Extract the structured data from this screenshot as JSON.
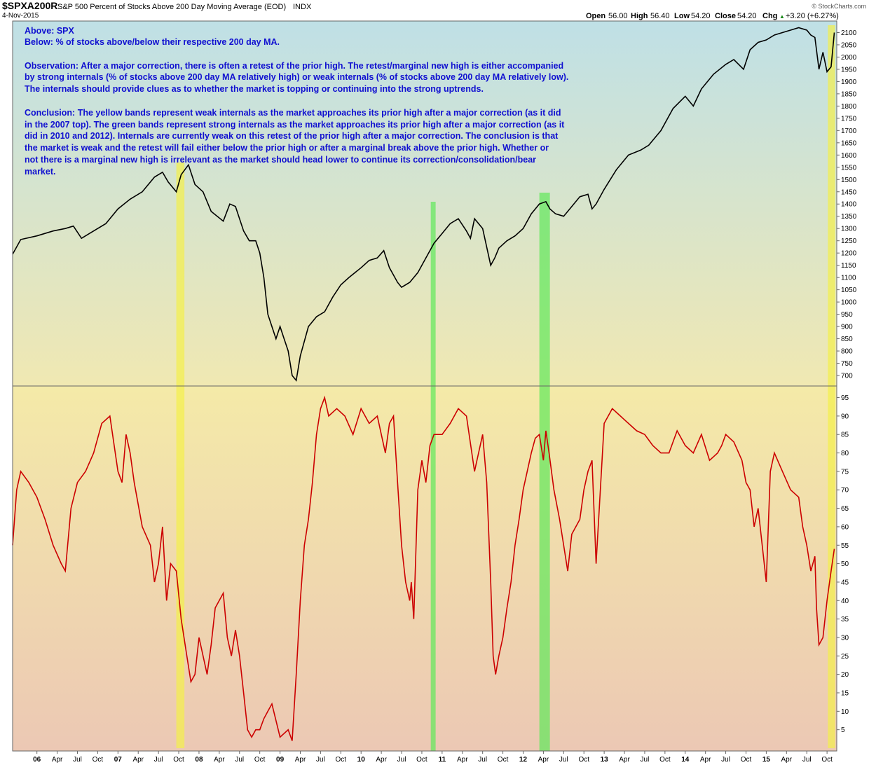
{
  "header": {
    "symbol": "$SPXA200R",
    "description": "S&P 500 Percent of Stocks Above 200 Day Moving Average (EOD)",
    "exchange": "INDX",
    "date": "4-Nov-2015",
    "watermark": "© StockCharts.com",
    "open_label": "Open",
    "open": "56.00",
    "high_label": "High",
    "high": "56.40",
    "low_label": "Low",
    "low": "54.20",
    "close_label": "Close",
    "close": "54.20",
    "chg_label": "Chg",
    "chg": "+3.20 (+6.27%)",
    "chg_arrow": "▲"
  },
  "annotation": {
    "l1": "Above: SPX",
    "l2": "Below: % of stocks above/below their respective 200 day MA.",
    "l3": "Observation: After a major correction, there is often a retest of the prior high. The retest/marginal new high is either accompanied",
    "l4": "by strong internals (% of stocks above 200 day MA relatively high) or weak internals (% of stocks above 200 day MA relatively low).",
    "l5": "The internals should provide clues as to whether the market is topping or continuing into the strong uptrends.",
    "l6": "Conclusion: The yellow bands represent weak internals as the market approaches its prior high after a major correction (as it did",
    "l7": "in the 2007 top). The green bands represent strong internals as the market approaches its prior high after a major correction (as it",
    "l8": "did in 2010 and 2012). Internals are currently weak on this retest of the prior high after a major correction. The conclusion is that",
    "l9": "the market is weak and the retest will fail either below the prior high or after a marginal break above the prior high. Whether or",
    "l10": "not there is a marginal new high is irrelevant as the market should head lower to continue its correction/consolidation/bear",
    "l11": "market."
  },
  "colors": {
    "spx_line": "#000000",
    "pct_line": "#cc0000",
    "yellow_band": "#f4f04a",
    "green_band": "#5fe85a",
    "annotation_text": "#1010d0",
    "top_bg_top": "#bfe0e6",
    "top_bg_bottom": "#f0e8b2",
    "bottom_bg_top": "#f4eaa8",
    "bottom_bg_bottom": "#ecc8b4"
  },
  "chart_data": [
    {
      "type": "line",
      "series": [
        {
          "x": [
            2005.7,
            2005.8,
            2006.0,
            2006.2,
            2006.35,
            2006.45,
            2006.55,
            2006.7,
            2006.85,
            2007.0,
            2007.15,
            2007.3,
            2007.45,
            2007.55,
            2007.62,
            2007.72,
            2007.78,
            2007.87,
            2007.95,
            2008.05,
            2008.15,
            2008.3,
            2008.38,
            2008.45,
            2008.55,
            2008.62,
            2008.7,
            2008.75,
            2008.8,
            2008.85,
            2008.9,
            2008.95,
            2009.0,
            2009.05,
            2009.1,
            2009.15,
            2009.2,
            2009.25,
            2009.35,
            2009.45,
            2009.55,
            2009.65,
            2009.75,
            2009.85,
            2010.0,
            2010.1,
            2010.2,
            2010.28,
            2010.35,
            2010.45,
            2010.5,
            2010.6,
            2010.7,
            2010.8,
            2010.9,
            2011.0,
            2011.1,
            2011.2,
            2011.3,
            2011.35,
            2011.4,
            2011.5,
            2011.6,
            2011.65,
            2011.7,
            2011.8,
            2011.9,
            2012.0,
            2012.1,
            2012.2,
            2012.28,
            2012.33,
            2012.4,
            2012.5,
            2012.6,
            2012.7,
            2012.8,
            2012.85,
            2012.9,
            2013.0,
            2013.15,
            2013.3,
            2013.45,
            2013.55,
            2013.7,
            2013.85,
            2014.0,
            2014.1,
            2014.2,
            2014.35,
            2014.5,
            2014.6,
            2014.72,
            2014.8,
            2014.9,
            2015.0,
            2015.1,
            2015.2,
            2015.3,
            2015.4,
            2015.5,
            2015.55,
            2015.6,
            2015.65,
            2015.7,
            2015.75,
            2015.8,
            2015.84
          ],
          "y": [
            1195,
            1255,
            1270,
            1290,
            1300,
            1310,
            1260,
            1290,
            1320,
            1380,
            1420,
            1450,
            1510,
            1530,
            1490,
            1450,
            1520,
            1560,
            1480,
            1450,
            1370,
            1330,
            1400,
            1390,
            1290,
            1250,
            1250,
            1200,
            1100,
            950,
            900,
            850,
            900,
            850,
            800,
            700,
            680,
            780,
            900,
            940,
            960,
            1020,
            1070,
            1100,
            1140,
            1170,
            1180,
            1210,
            1140,
            1080,
            1060,
            1080,
            1120,
            1180,
            1240,
            1280,
            1320,
            1340,
            1290,
            1260,
            1340,
            1300,
            1150,
            1180,
            1220,
            1250,
            1270,
            1300,
            1360,
            1400,
            1410,
            1380,
            1360,
            1350,
            1390,
            1430,
            1440,
            1380,
            1400,
            1460,
            1540,
            1600,
            1620,
            1640,
            1700,
            1790,
            1840,
            1800,
            1870,
            1930,
            1970,
            1990,
            1950,
            2030,
            2060,
            2070,
            2090,
            2100,
            2110,
            2120,
            2110,
            2090,
            2080,
            1950,
            2020,
            1940,
            1960,
            2100
          ]
        }
      ],
      "ylim": [
        680,
        2130
      ],
      "yticks": [
        700,
        750,
        800,
        850,
        900,
        950,
        1000,
        1050,
        1100,
        1150,
        1200,
        1250,
        1300,
        1350,
        1400,
        1450,
        1500,
        1550,
        1600,
        1650,
        1700,
        1750,
        1800,
        1850,
        1900,
        1950,
        2000,
        2050,
        2100
      ],
      "grid": false
    },
    {
      "type": "line",
      "series": [
        {
          "x": [
            2005.7,
            2005.75,
            2005.8,
            2005.9,
            2006.0,
            2006.1,
            2006.2,
            2006.3,
            2006.35,
            2006.42,
            2006.5,
            2006.6,
            2006.7,
            2006.8,
            2006.9,
            2007.0,
            2007.05,
            2007.1,
            2007.15,
            2007.2,
            2007.3,
            2007.4,
            2007.45,
            2007.5,
            2007.55,
            2007.6,
            2007.65,
            2007.72,
            2007.78,
            2007.85,
            2007.9,
            2007.95,
            2008.0,
            2008.1,
            2008.15,
            2008.2,
            2008.3,
            2008.35,
            2008.4,
            2008.45,
            2008.5,
            2008.55,
            2008.6,
            2008.65,
            2008.7,
            2008.75,
            2008.8,
            2008.85,
            2008.9,
            2009.0,
            2009.1,
            2009.15,
            2009.2,
            2009.25,
            2009.3,
            2009.35,
            2009.4,
            2009.45,
            2009.5,
            2009.55,
            2009.6,
            2009.7,
            2009.8,
            2009.9,
            2010.0,
            2010.1,
            2010.2,
            2010.25,
            2010.3,
            2010.35,
            2010.4,
            2010.45,
            2010.5,
            2010.55,
            2010.6,
            2010.62,
            2010.65,
            2010.7,
            2010.75,
            2010.8,
            2010.85,
            2010.9,
            2011.0,
            2011.1,
            2011.2,
            2011.3,
            2011.4,
            2011.45,
            2011.5,
            2011.55,
            2011.6,
            2011.63,
            2011.66,
            2011.7,
            2011.75,
            2011.8,
            2011.85,
            2011.9,
            2011.95,
            2012.0,
            2012.05,
            2012.1,
            2012.15,
            2012.2,
            2012.25,
            2012.28,
            2012.32,
            2012.38,
            2012.45,
            2012.5,
            2012.55,
            2012.6,
            2012.7,
            2012.75,
            2012.8,
            2012.85,
            2012.9,
            2013.0,
            2013.1,
            2013.2,
            2013.3,
            2013.4,
            2013.5,
            2013.6,
            2013.7,
            2013.8,
            2013.9,
            2014.0,
            2014.1,
            2014.2,
            2014.3,
            2014.4,
            2014.45,
            2014.5,
            2014.6,
            2014.7,
            2014.75,
            2014.8,
            2014.85,
            2014.9,
            2015.0,
            2015.05,
            2015.1,
            2015.2,
            2015.3,
            2015.4,
            2015.45,
            2015.5,
            2015.55,
            2015.6,
            2015.62,
            2015.65,
            2015.7,
            2015.75,
            2015.8,
            2015.84
          ],
          "y": [
            55,
            70,
            75,
            72,
            68,
            62,
            55,
            50,
            48,
            65,
            72,
            75,
            80,
            88,
            90,
            75,
            72,
            85,
            80,
            72,
            60,
            55,
            45,
            50,
            60,
            40,
            50,
            48,
            35,
            25,
            18,
            20,
            30,
            20,
            28,
            38,
            42,
            30,
            25,
            32,
            25,
            15,
            5,
            3,
            5,
            5,
            8,
            10,
            12,
            3,
            5,
            2,
            20,
            40,
            55,
            62,
            72,
            85,
            92,
            95,
            90,
            92,
            90,
            85,
            92,
            88,
            90,
            85,
            80,
            88,
            90,
            72,
            55,
            45,
            40,
            45,
            35,
            70,
            78,
            72,
            82,
            85,
            85,
            88,
            92,
            90,
            75,
            80,
            85,
            72,
            45,
            25,
            20,
            25,
            30,
            38,
            45,
            55,
            62,
            70,
            75,
            80,
            84,
            85,
            78,
            86,
            80,
            70,
            62,
            55,
            48,
            58,
            62,
            70,
            75,
            78,
            50,
            88,
            92,
            90,
            88,
            86,
            85,
            82,
            80,
            80,
            86,
            82,
            80,
            85,
            78,
            80,
            82,
            85,
            83,
            78,
            72,
            70,
            60,
            65,
            45,
            75,
            80,
            75,
            70,
            68,
            60,
            55,
            48,
            52,
            38,
            28,
            30,
            40,
            48,
            54
          ]
        }
      ],
      "ylim": [
        0,
        97
      ],
      "yticks": [
        5,
        10,
        15,
        20,
        25,
        30,
        35,
        40,
        45,
        50,
        55,
        60,
        65,
        70,
        75,
        80,
        85,
        90,
        95
      ],
      "bands": [
        {
          "color": "yellow",
          "x0": 2007.72,
          "x1": 2007.82
        },
        {
          "color": "green",
          "x0": 2010.86,
          "x1": 2010.92
        },
        {
          "color": "green",
          "x0": 2012.2,
          "x1": 2012.33
        },
        {
          "color": "yellow",
          "x0": 2015.76,
          "x1": 2015.85
        }
      ]
    }
  ],
  "x_axis": {
    "labels": [
      "06",
      "Apr",
      "Jul",
      "Oct",
      "07",
      "Apr",
      "Jul",
      "Oct",
      "08",
      "Apr",
      "Jul",
      "Oct",
      "09",
      "Apr",
      "Jul",
      "Oct",
      "10",
      "Apr",
      "Jul",
      "Oct",
      "11",
      "Apr",
      "Jul",
      "Oct",
      "12",
      "Apr",
      "Jul",
      "Oct",
      "13",
      "Apr",
      "Jul",
      "Oct",
      "14",
      "Apr",
      "Jul",
      "Oct",
      "15",
      "Apr",
      "Jul",
      "Oct"
    ],
    "values": [
      2006.0,
      2006.25,
      2006.5,
      2006.75,
      2007.0,
      2007.25,
      2007.5,
      2007.75,
      2008.0,
      2008.25,
      2008.5,
      2008.75,
      2009.0,
      2009.25,
      2009.5,
      2009.75,
      2010.0,
      2010.25,
      2010.5,
      2010.75,
      2011.0,
      2011.25,
      2011.5,
      2011.75,
      2012.0,
      2012.25,
      2012.5,
      2012.75,
      2013.0,
      2013.25,
      2013.5,
      2013.75,
      2014.0,
      2014.25,
      2014.5,
      2014.75,
      2015.0,
      2015.25,
      2015.5,
      2015.75
    ],
    "bold_labels": [
      "06",
      "07",
      "08",
      "09",
      "10",
      "11",
      "12",
      "13",
      "14",
      "15"
    ]
  }
}
